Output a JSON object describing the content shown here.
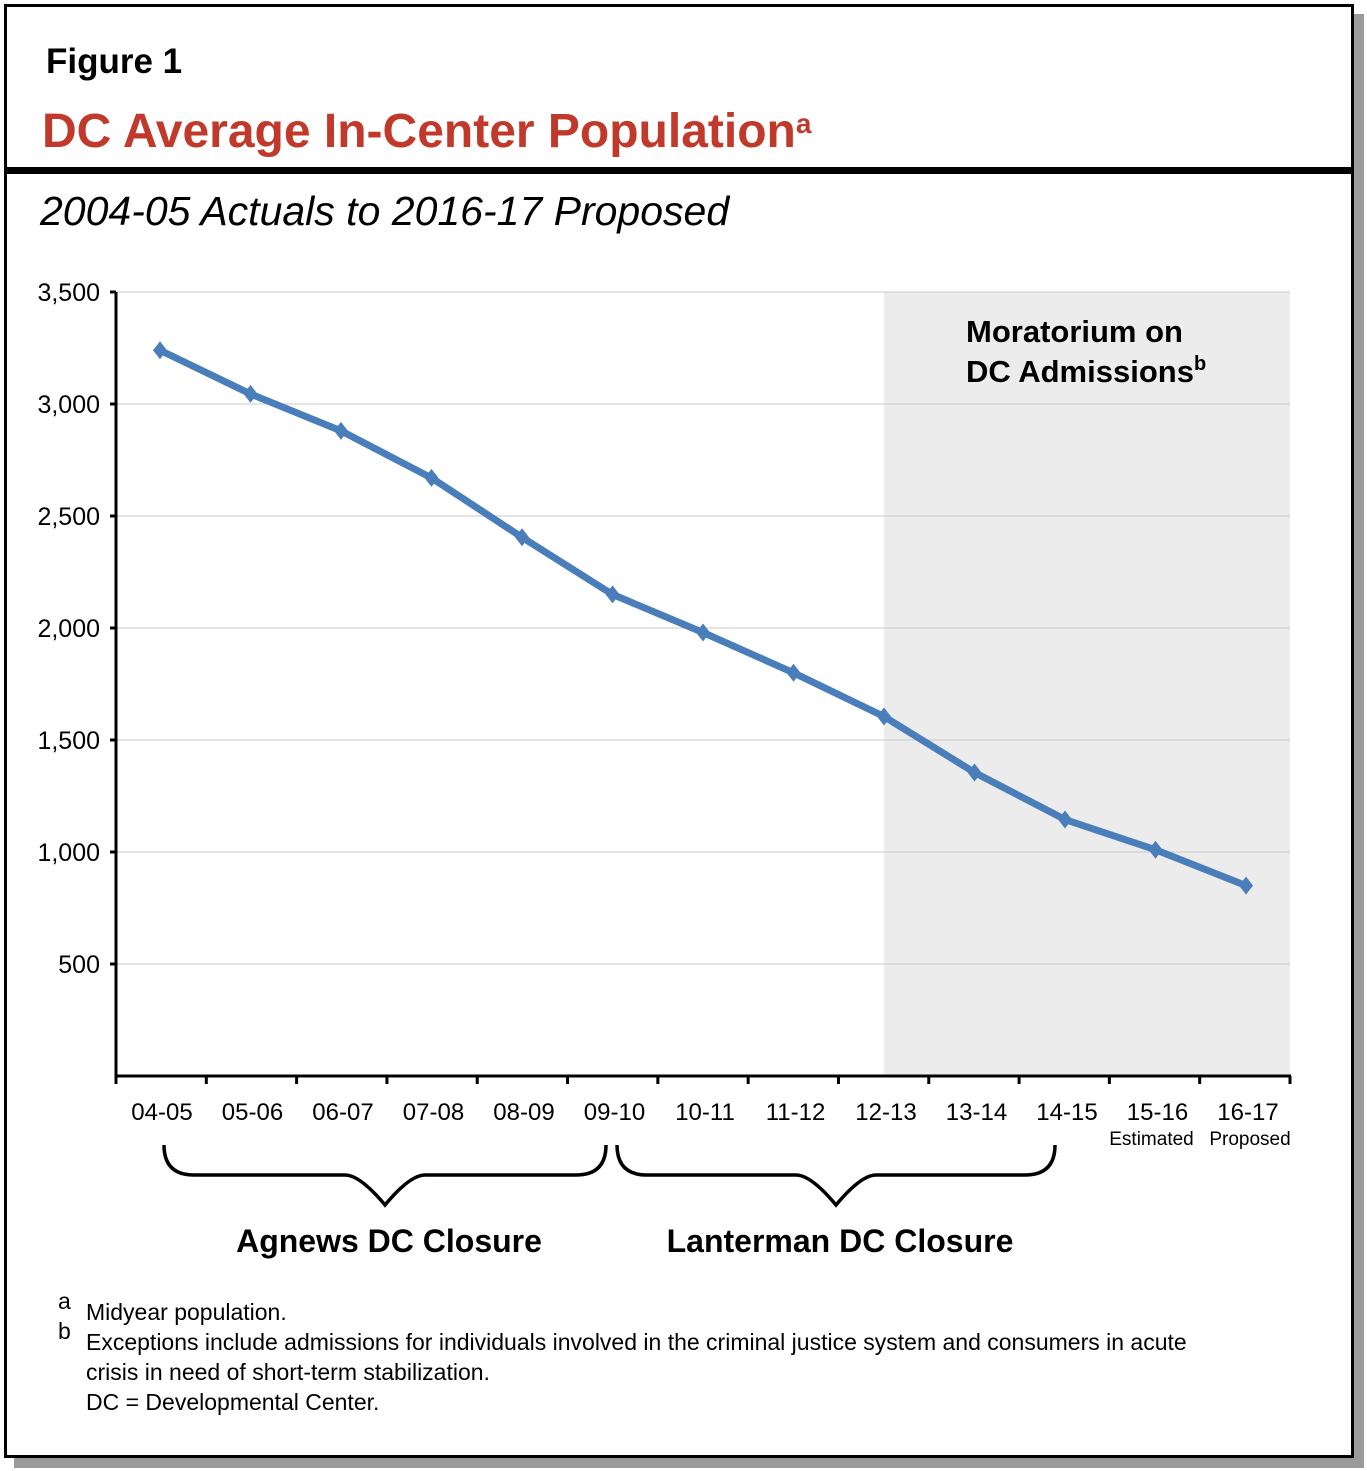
{
  "figure_label": "Figure 1",
  "title": "DC Average In-Center Population",
  "title_superscript": "a",
  "subtitle": "2004-05 Actuals to 2016-17 Proposed",
  "chart_data": {
    "type": "line",
    "categories": [
      "04-05",
      "05-06",
      "06-07",
      "07-08",
      "08-09",
      "09-10",
      "10-11",
      "11-12",
      "12-13",
      "13-14",
      "14-15",
      "15-16",
      "16-17"
    ],
    "category_sublabels": {
      "15-16": "Estimated",
      "16-17": "Proposed"
    },
    "values": [
      3240,
      3045,
      2880,
      2670,
      2405,
      2150,
      1980,
      1800,
      1605,
      1355,
      1145,
      1010,
      850
    ],
    "ylim": [
      0,
      3500
    ],
    "yticks": [
      500,
      1000,
      1500,
      2000,
      2500,
      3000,
      3500
    ],
    "ytick_labels": [
      "500",
      "1,000",
      "1,500",
      "2,000",
      "2,500",
      "3,000",
      "3,500"
    ],
    "grid": true,
    "line_color": "#4a7ebb",
    "shaded_region": {
      "from": "12-13",
      "to": "16-17",
      "color": "#ebeceb",
      "label": "Moratorium on DC Admissions",
      "label_line1": "Moratorium on",
      "label_line2": "DC Admissions",
      "label_superscript": "b"
    },
    "brackets": [
      {
        "label": "Agnews DC Closure",
        "from": "04-05",
        "to": "09-10"
      },
      {
        "label": "Lanterman DC Closure",
        "from": "09-10",
        "to": "14-15"
      }
    ]
  },
  "notes": [
    {
      "marker": "a",
      "text": "Midyear population."
    },
    {
      "marker": "b",
      "text": "Exceptions include admissions for individuals involved in the criminal justice system and consumers in acute crisis in need of short-term stabilization."
    },
    {
      "marker": "",
      "text": "DC = Developmental Center."
    }
  ]
}
